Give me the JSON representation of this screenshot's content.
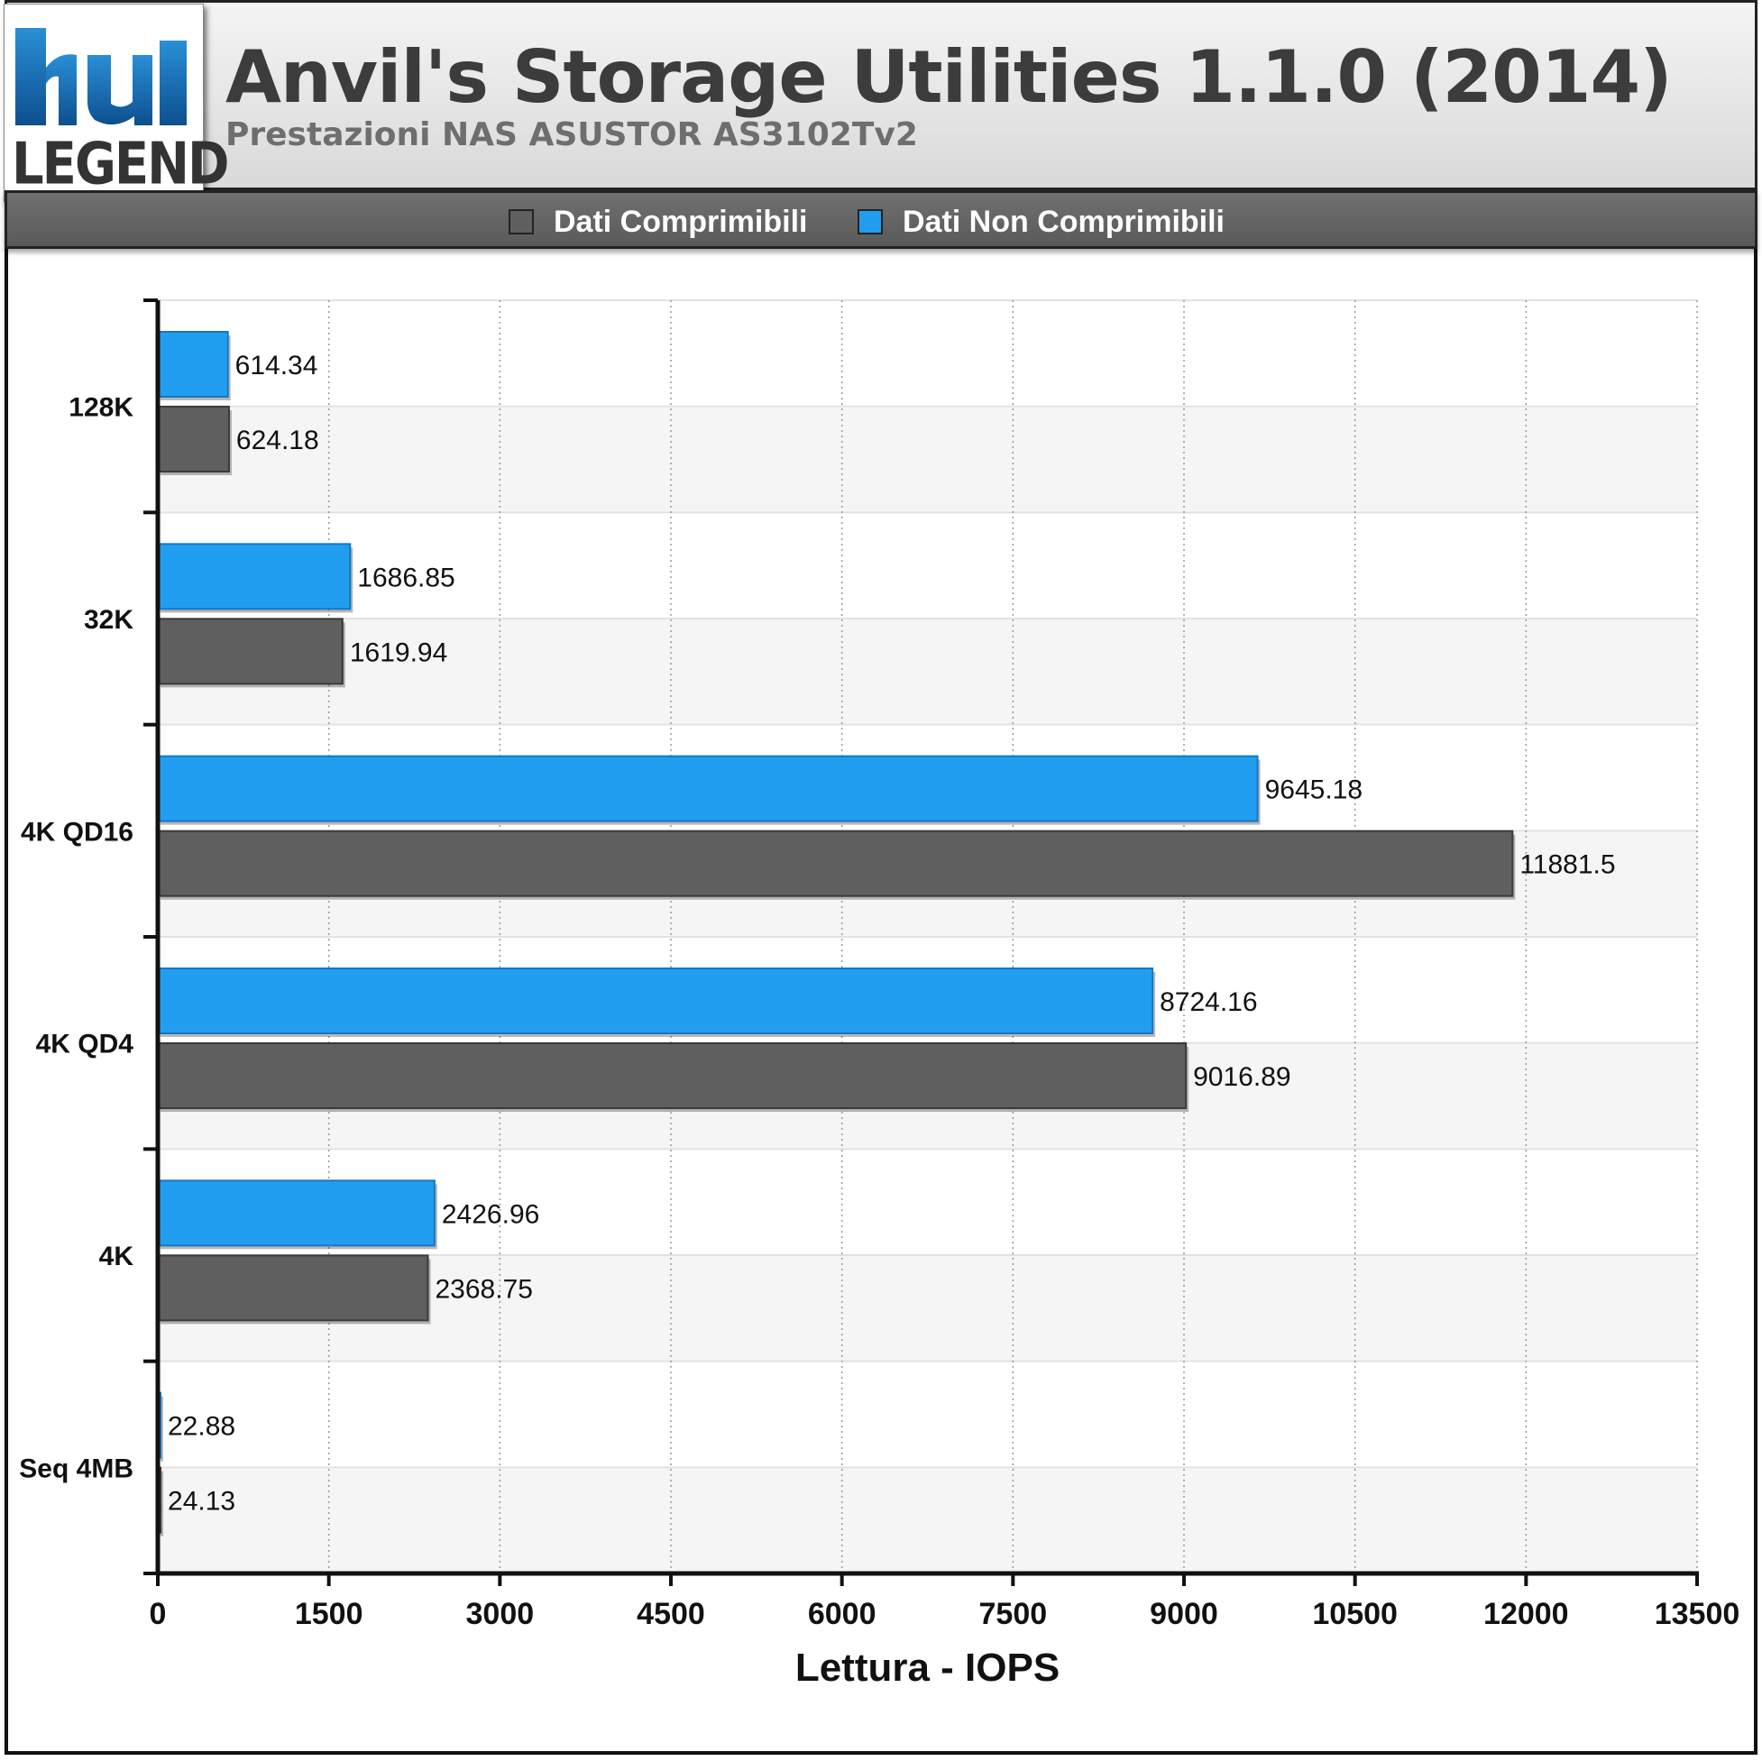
{
  "header": {
    "logo_text": "LEGEND",
    "title": "Anvil's Storage Utilities 1.1.0 (2014)",
    "subtitle": "Prestazioni NAS ASUSTOR AS3102Tv2"
  },
  "colors": {
    "compressible": "#5f5f5f",
    "non_compressible": "#219ef0",
    "logo_blue": "#1e73b8"
  },
  "chart_data": {
    "type": "bar",
    "orientation": "horizontal",
    "title": "Anvil's Storage Utilities 1.1.0 (2014)",
    "subtitle": "Prestazioni NAS ASUSTOR AS3102Tv2",
    "xlabel": "Lettura - IOPS",
    "ylabel": "",
    "xlim": [
      0,
      13500
    ],
    "xticks": [
      0,
      1500,
      3000,
      4500,
      6000,
      7500,
      9000,
      10500,
      12000,
      13500
    ],
    "grid": true,
    "legend_position": "top",
    "categories": [
      "128K",
      "32K",
      "4K QD16",
      "4K QD4",
      "4K",
      "Seq 4MB"
    ],
    "series": [
      {
        "name": "Dati Comprimibili",
        "values": [
          624.18,
          1619.94,
          11881.5,
          9016.89,
          2368.75,
          24.13
        ]
      },
      {
        "name": "Dati Non Comprimibili",
        "values": [
          614.34,
          1686.85,
          9645.18,
          8724.16,
          2426.96,
          22.88
        ]
      }
    ]
  }
}
